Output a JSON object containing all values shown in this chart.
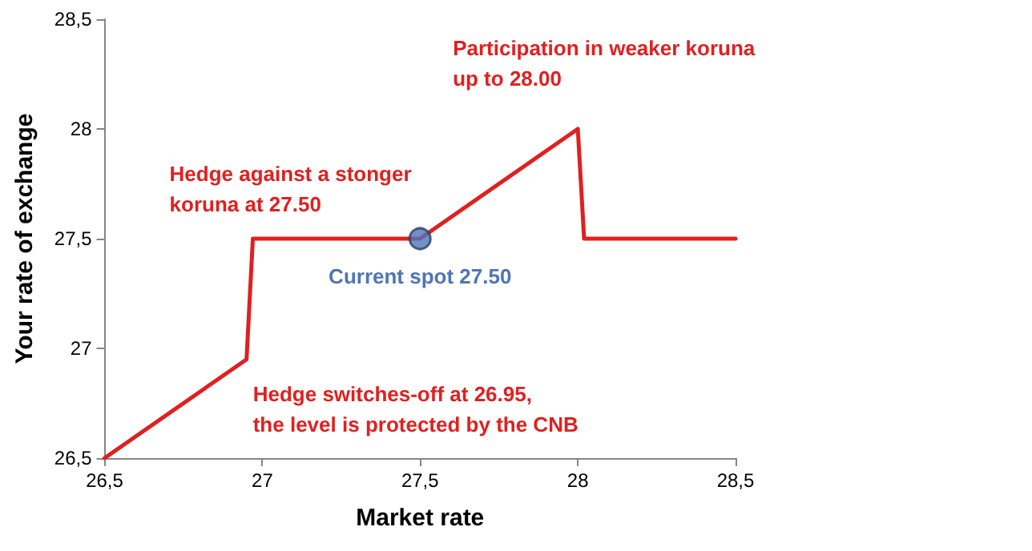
{
  "chart_data": {
    "type": "line",
    "xlabel": "Market rate",
    "ylabel": "Your rate of exchange",
    "xlim": [
      26.5,
      28.5
    ],
    "ylim": [
      26.5,
      28.5
    ],
    "xticks": [
      {
        "value": 26.5,
        "label": "26,5"
      },
      27,
      {
        "value": 27.5,
        "label": "27,5"
      },
      28,
      {
        "value": 28.5,
        "label": "28,5"
      }
    ],
    "yticks": [
      {
        "value": 26.5,
        "label": "26,5"
      },
      27,
      {
        "value": 27.5,
        "label": "27,5"
      },
      28,
      {
        "value": 28.5,
        "label": "28,5"
      }
    ],
    "grid": false,
    "series": [
      {
        "color": "#e02020",
        "marker": "none",
        "x": [
          26.5,
          26.95,
          26.97,
          27.5,
          28.0,
          28.02,
          28.5
        ],
        "values": [
          26.5,
          26.95,
          27.5,
          27.5,
          28.0,
          27.5,
          27.5
        ]
      },
      {
        "type": "scatter",
        "color": "#4f75b8",
        "marker": "circle",
        "x": [
          27.5
        ],
        "values": [
          27.5
        ]
      }
    ],
    "annotations": [
      {
        "text": "Participation in weaker koruna\nup to 28.00",
        "x": 28.0,
        "y": 28.0
      },
      {
        "text": "Hedge against a stonger\nkoruna at 27.50",
        "x": 26.97,
        "y": 27.5
      },
      {
        "text": "Current spot 27.50",
        "x": 27.5,
        "y": 27.5
      },
      {
        "text": "Hedge switches-off at 26.95,\nthe level is protected by the CNB",
        "x": 26.95,
        "y": 26.95
      }
    ]
  }
}
